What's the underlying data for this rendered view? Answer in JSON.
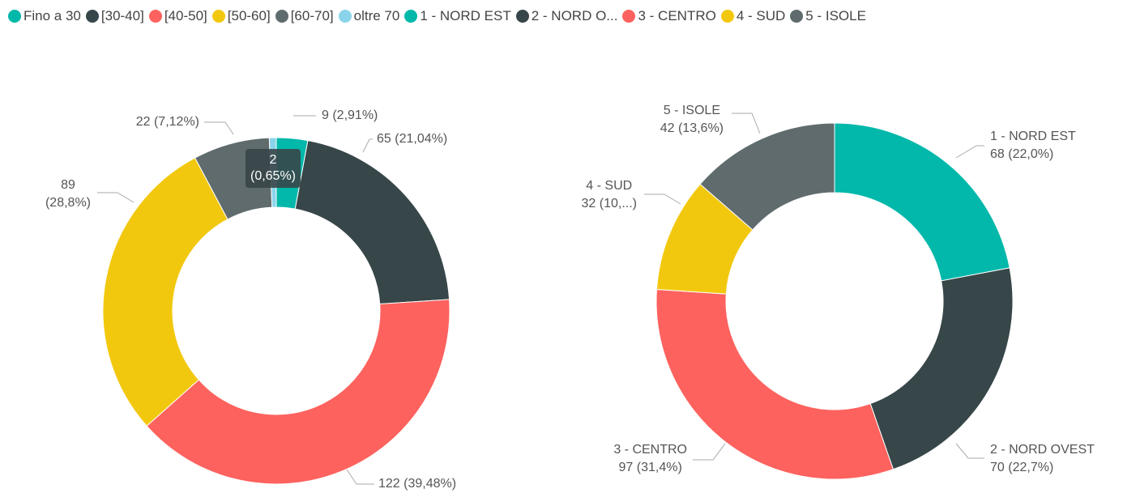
{
  "chart_data": [
    {
      "type": "donut",
      "categories": [
        "Fino a 30",
        "[30-40]",
        "[40-50]",
        "[50-60]",
        "[60-70]",
        "oltre 70"
      ],
      "legend": [
        "Fino a 30",
        "[30-40]",
        "[40-50]",
        "[50-60]",
        "[60-70]",
        "oltre 70"
      ],
      "values": [
        9,
        65,
        122,
        89,
        22,
        2
      ],
      "value_labels": [
        "9 (2,91%)",
        "65 (21,04%)",
        "122 (39,48%)",
        "89\n(28,8%)",
        "22 (7,12%)",
        "2\n(0,65%)"
      ],
      "colors": [
        "#01b8aa",
        "#374649",
        "#fd625e",
        "#f2c80f",
        "#5f6b6d",
        "#8ad4eb"
      ]
    },
    {
      "type": "donut",
      "categories": [
        "1 - NORD EST",
        "2 - NORD OVEST",
        "3 - CENTRO",
        "4 - SUD",
        "5 - ISOLE"
      ],
      "legend": [
        "1 - NORD EST",
        "2 - NORD O...",
        "3 - CENTRO",
        "4 - SUD",
        "5 - ISOLE"
      ],
      "values": [
        68,
        70,
        97,
        32,
        42
      ],
      "value_labels": [
        "68 (22,0%)",
        "70 (22,7%)",
        "97 (31,4%)",
        "32 (10,...)",
        "42 (13,6%)"
      ],
      "colors": [
        "#01b8aa",
        "#374649",
        "#fd625e",
        "#f2c80f",
        "#5f6b6d"
      ]
    }
  ]
}
